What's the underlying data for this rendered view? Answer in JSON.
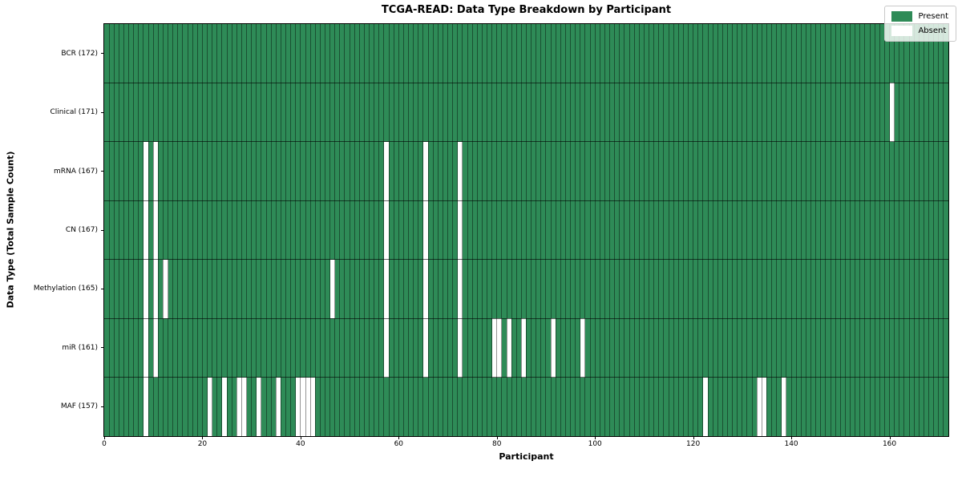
{
  "title": "TCGA-READ: Data Type Breakdown by Participant",
  "legend": {
    "present_label": "Present",
    "absent_label": "Absent"
  },
  "colors": {
    "present": "#2e8b57",
    "absent": "#ffffff",
    "column_grid": "rgba(0,0,0,0.42)",
    "row_grid": "rgba(0,0,0,0.6)",
    "plot_border": "#000000",
    "legend_bg": "rgba(255,255,255,0.8)"
  },
  "chart_data": {
    "type": "heatmap",
    "title": "TCGA-READ: Data Type Breakdown by Participant",
    "xlabel": "Participant",
    "ylabel": "Data Type (Total Sample Count)",
    "n_participants": 172,
    "x_ticks": [
      0,
      20,
      40,
      60,
      80,
      100,
      120,
      140,
      160
    ],
    "legend": [
      "Present",
      "Absent"
    ],
    "legend_position": "upper right",
    "grid": "on",
    "rows": [
      {
        "label": "BCR (172)",
        "data_type": "BCR",
        "total_sample_count": 172,
        "absent_participants": []
      },
      {
        "label": "Clinical (171)",
        "data_type": "Clinical",
        "total_sample_count": 171,
        "absent_participants": [
          160
        ]
      },
      {
        "label": "mRNA (167)",
        "data_type": "mRNA",
        "total_sample_count": 167,
        "absent_participants": [
          8,
          10,
          57,
          65,
          72
        ]
      },
      {
        "label": "CN (167)",
        "data_type": "CN",
        "total_sample_count": 167,
        "absent_participants": [
          8,
          10,
          57,
          65,
          72
        ]
      },
      {
        "label": "Methylation (165)",
        "data_type": "Methylation",
        "total_sample_count": 165,
        "absent_participants": [
          8,
          10,
          12,
          46,
          57,
          65,
          72
        ]
      },
      {
        "label": "miR (161)",
        "data_type": "miR",
        "total_sample_count": 161,
        "absent_participants": [
          8,
          10,
          57,
          65,
          72,
          79,
          80,
          82,
          85,
          91,
          97
        ]
      },
      {
        "label": "MAF (157)",
        "data_type": "MAF",
        "total_sample_count": 157,
        "absent_participants": [
          8,
          21,
          24,
          27,
          28,
          31,
          35,
          39,
          40,
          41,
          42,
          122,
          133,
          134,
          138
        ]
      }
    ]
  }
}
